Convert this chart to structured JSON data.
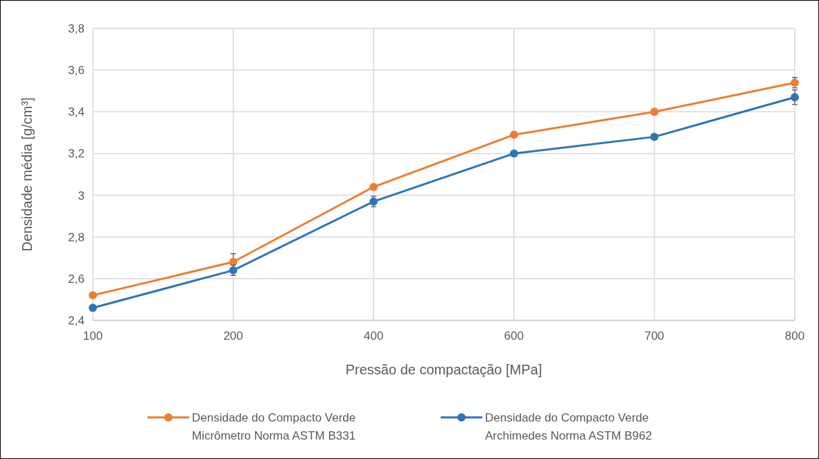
{
  "chart_data": {
    "type": "line",
    "xlabel": "Pressão de compactação [MPa]",
    "ylabel": "Densidade média [g/cm³]",
    "categories": [
      "100",
      "200",
      "400",
      "600",
      "700",
      "800"
    ],
    "series": [
      {
        "name": "Densidade do Compacto Verde\nMicrômetro Norma ASTM B331",
        "color": "#ed7d31",
        "values": [
          2.52,
          2.68,
          3.04,
          3.29,
          3.4,
          3.54
        ],
        "errors": [
          null,
          0.04,
          null,
          null,
          null,
          0.025
        ]
      },
      {
        "name": "Densidade do Compacto Verde\nArchimedes Norma ASTM B962",
        "color": "#2e75b6",
        "values": [
          2.46,
          2.64,
          2.97,
          3.2,
          3.28,
          3.47
        ],
        "errors": [
          null,
          0.025,
          0.025,
          null,
          null,
          0.035
        ]
      }
    ],
    "ylim": [
      2.4,
      3.8
    ],
    "yticks": [
      {
        "value": 2.4,
        "label": "2,4"
      },
      {
        "value": 2.6,
        "label": "2,6"
      },
      {
        "value": 2.8,
        "label": "2,8"
      },
      {
        "value": 3,
        "label": "3"
      },
      {
        "value": 3.2,
        "label": "3,2"
      },
      {
        "value": 3.4,
        "label": "3,4"
      },
      {
        "value": 3.6,
        "label": "3,6"
      },
      {
        "value": 3.8,
        "label": "3,8"
      }
    ],
    "grid": true,
    "legend": "bottom",
    "marker": "circle",
    "line_style": "solid"
  }
}
